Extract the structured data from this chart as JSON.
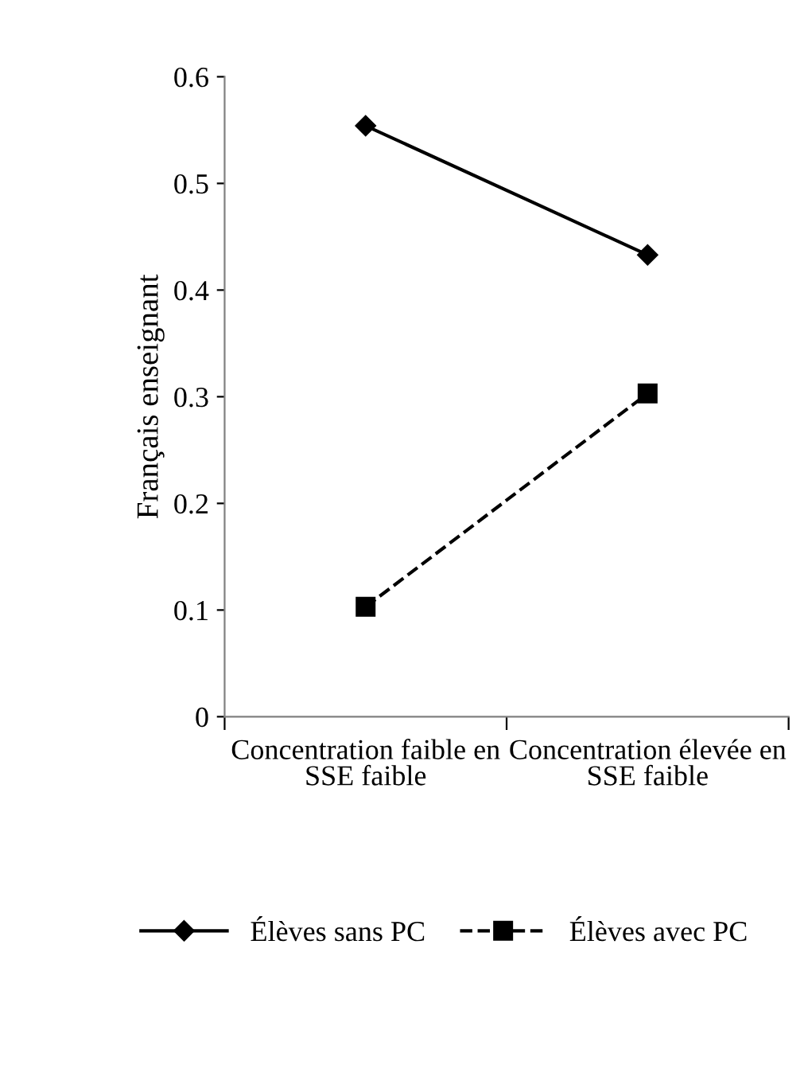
{
  "chart_data": {
    "type": "line",
    "ylabel": "Français enseignant",
    "categories": [
      "Concentration faible en SSE faible",
      "Concentration élevée en SSE faible"
    ],
    "series": [
      {
        "name": "Élèves sans PC",
        "color": "#000000",
        "values": [
          0.554,
          0.433
        ],
        "marker": "diamond",
        "line_style": "solid"
      },
      {
        "name": "Élèves avec PC",
        "color": "#000000",
        "values": [
          0.103,
          0.303
        ],
        "marker": "square",
        "line_style": "dashed"
      }
    ],
    "ylim": [
      0,
      0.6
    ],
    "yticks": [
      0,
      0.1,
      0.2,
      0.3,
      0.4,
      0.5,
      0.6
    ],
    "grid": false,
    "legend": "bottom"
  }
}
